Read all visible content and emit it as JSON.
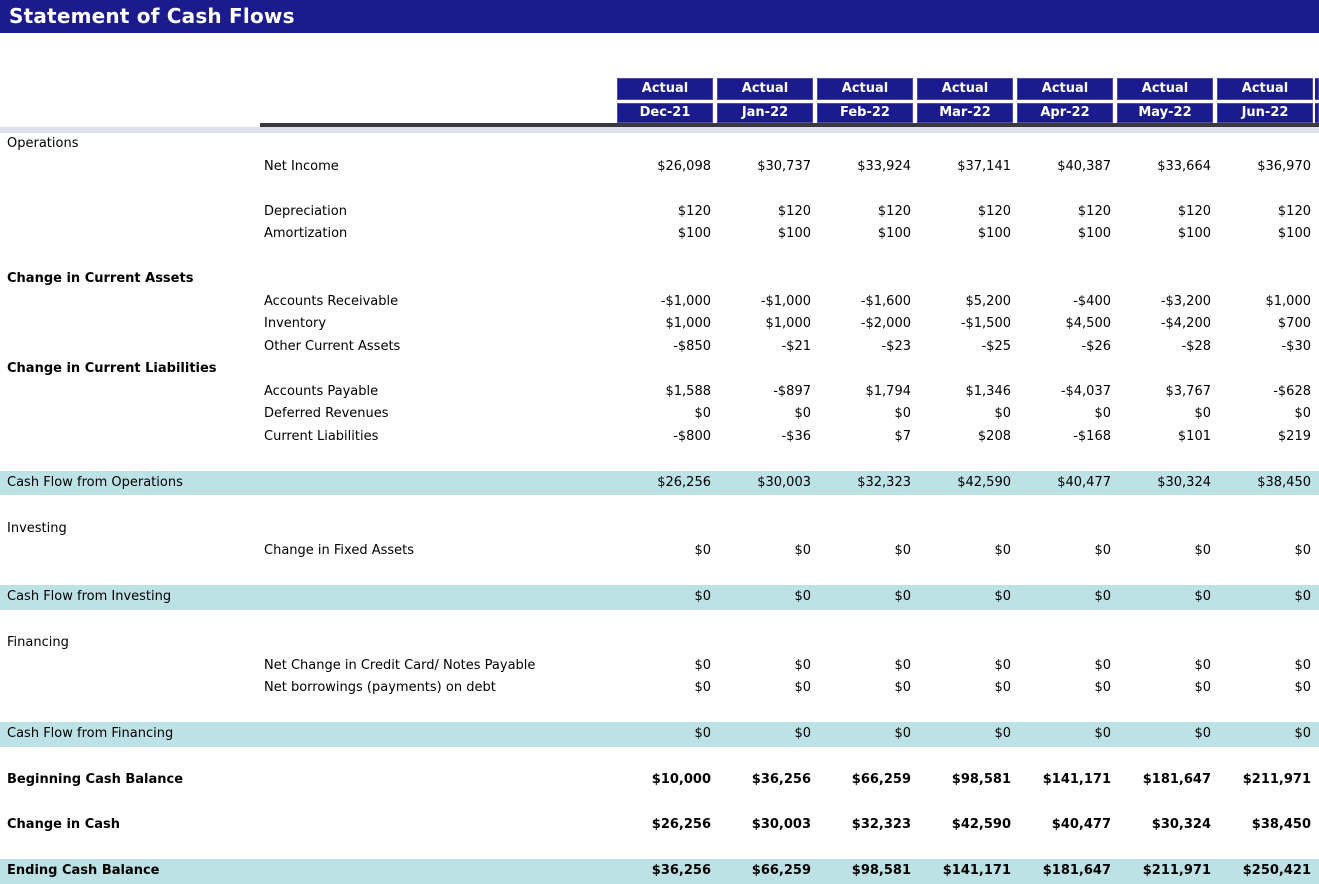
{
  "title": "Statement of Cash Flows",
  "colors": {
    "navy": "#1b1b8e",
    "teal": "#bce2e5",
    "separator_band": "#dee1eb",
    "separator_rule": "#3a3a3e"
  },
  "columns": [
    {
      "period": "Actual",
      "date": "Dec-21"
    },
    {
      "period": "Actual",
      "date": "Jan-22"
    },
    {
      "period": "Actual",
      "date": "Feb-22"
    },
    {
      "period": "Actual",
      "date": "Mar-22"
    },
    {
      "period": "Actual",
      "date": "Apr-22"
    },
    {
      "period": "Actual",
      "date": "May-22"
    },
    {
      "period": "Actual",
      "date": "Jun-22"
    }
  ],
  "table": {
    "rows": [
      {
        "label": "Operations",
        "indent": false,
        "style": "plain"
      },
      {
        "label": "Net Income",
        "indent": true,
        "style": "plain",
        "values": [
          "$26,098",
          "$30,737",
          "$33,924",
          "$37,141",
          "$40,387",
          "$33,664",
          "$36,970"
        ]
      },
      {
        "style": "spacer"
      },
      {
        "label": "Depreciation",
        "indent": true,
        "style": "plain",
        "values": [
          "$120",
          "$120",
          "$120",
          "$120",
          "$120",
          "$120",
          "$120"
        ]
      },
      {
        "label": "Amortization",
        "indent": true,
        "style": "plain",
        "values": [
          "$100",
          "$100",
          "$100",
          "$100",
          "$100",
          "$100",
          "$100"
        ]
      },
      {
        "style": "spacer"
      },
      {
        "label": "Change in Current Assets",
        "indent": false,
        "style": "bold-section"
      },
      {
        "label": "Accounts Receivable",
        "indent": true,
        "style": "plain",
        "values": [
          "-$1,000",
          "-$1,000",
          "-$1,600",
          "$5,200",
          "-$400",
          "-$3,200",
          "$1,000"
        ]
      },
      {
        "label": "Inventory",
        "indent": true,
        "style": "plain",
        "values": [
          "$1,000",
          "$1,000",
          "-$2,000",
          "-$1,500",
          "$4,500",
          "-$4,200",
          "$700"
        ]
      },
      {
        "label": "Other Current Assets",
        "indent": true,
        "style": "plain",
        "values": [
          "-$850",
          "-$21",
          "-$23",
          "-$25",
          "-$26",
          "-$28",
          "-$30"
        ]
      },
      {
        "label": "Change in Current Liabilities",
        "indent": false,
        "style": "bold-section"
      },
      {
        "label": "Accounts Payable",
        "indent": true,
        "style": "plain",
        "values": [
          "$1,588",
          "-$897",
          "$1,794",
          "$1,346",
          "-$4,037",
          "$3,767",
          "-$628"
        ]
      },
      {
        "label": "Deferred Revenues",
        "indent": true,
        "style": "plain",
        "values": [
          "$0",
          "$0",
          "$0",
          "$0",
          "$0",
          "$0",
          "$0"
        ]
      },
      {
        "label": "Current Liabilities",
        "indent": true,
        "style": "plain",
        "values": [
          "-$800",
          "-$36",
          "$7",
          "$208",
          "-$168",
          "$101",
          "$219"
        ]
      },
      {
        "style": "spacer"
      },
      {
        "label": "Cash Flow from Operations",
        "indent": false,
        "style": "teal",
        "values": [
          "$26,256",
          "$30,003",
          "$32,323",
          "$42,590",
          "$40,477",
          "$30,324",
          "$38,450"
        ]
      },
      {
        "style": "spacer"
      },
      {
        "label": "Investing",
        "indent": false,
        "style": "plain"
      },
      {
        "label": "Change in Fixed Assets",
        "indent": true,
        "style": "plain",
        "values": [
          "$0",
          "$0",
          "$0",
          "$0",
          "$0",
          "$0",
          "$0"
        ]
      },
      {
        "style": "spacer"
      },
      {
        "label": "Cash Flow from Investing",
        "indent": false,
        "style": "teal",
        "values": [
          "$0",
          "$0",
          "$0",
          "$0",
          "$0",
          "$0",
          "$0"
        ]
      },
      {
        "style": "spacer"
      },
      {
        "label": "Financing",
        "indent": false,
        "style": "plain"
      },
      {
        "label": "Net Change in Credit Card/ Notes Payable",
        "indent": true,
        "style": "plain",
        "values": [
          "$0",
          "$0",
          "$0",
          "$0",
          "$0",
          "$0",
          "$0"
        ]
      },
      {
        "label": "Net borrowings (payments) on debt",
        "indent": true,
        "style": "plain",
        "values": [
          "$0",
          "$0",
          "$0",
          "$0",
          "$0",
          "$0",
          "$0"
        ]
      },
      {
        "style": "spacer"
      },
      {
        "label": "Cash Flow from Financing",
        "indent": false,
        "style": "teal",
        "values": [
          "$0",
          "$0",
          "$0",
          "$0",
          "$0",
          "$0",
          "$0"
        ]
      },
      {
        "style": "spacer"
      },
      {
        "label": "Beginning Cash Balance",
        "indent": false,
        "style": "bold",
        "values": [
          "$10,000",
          "$36,256",
          "$66,259",
          "$98,581",
          "$141,171",
          "$181,647",
          "$211,971"
        ]
      },
      {
        "style": "spacer"
      },
      {
        "label": "Change in Cash",
        "indent": false,
        "style": "bold",
        "values": [
          "$26,256",
          "$30,003",
          "$32,323",
          "$42,590",
          "$40,477",
          "$30,324",
          "$38,450"
        ]
      },
      {
        "style": "spacer"
      },
      {
        "label": "Ending Cash Balance",
        "indent": false,
        "style": "teal-bold",
        "values": [
          "$36,256",
          "$66,259",
          "$98,581",
          "$141,171",
          "$181,647",
          "$211,971",
          "$250,421"
        ]
      }
    ]
  }
}
